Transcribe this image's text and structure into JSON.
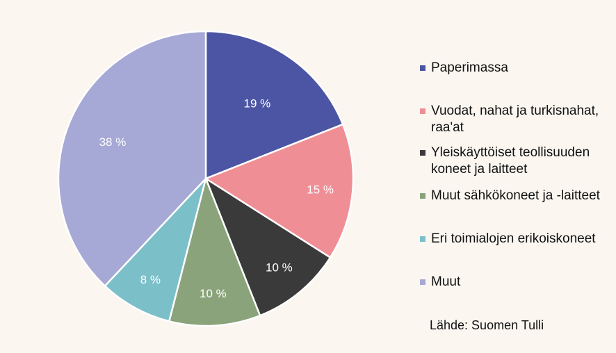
{
  "chart_data": {
    "type": "pie",
    "title": "",
    "slices": [
      {
        "label": "Paperimassa",
        "value": 19,
        "display": "19 %",
        "color": "#4b55a3"
      },
      {
        "label": "Vuodat, nahat ja turkisnahat,\nraa'at",
        "value": 15,
        "display": "15 %",
        "color": "#f08e96"
      },
      {
        "label": "Yleiskäyttöiset teollisuuden\nkoneet ja laitteet",
        "value": 10,
        "display": "10 %",
        "color": "#3a3a3a"
      },
      {
        "label": "Muut sähkökoneet ja -laitteet",
        "value": 10,
        "display": "10 %",
        "color": "#8aa37b"
      },
      {
        "label": "Eri toimialojen erikoiskoneet",
        "value": 8,
        "display": "8 %",
        "color": "#7bbfc9"
      },
      {
        "label": "Muut",
        "value": 38,
        "display": "38 %",
        "color": "#a6a8d5"
      }
    ],
    "legend": "right",
    "source": "Lähde: Suomen Tulli"
  }
}
